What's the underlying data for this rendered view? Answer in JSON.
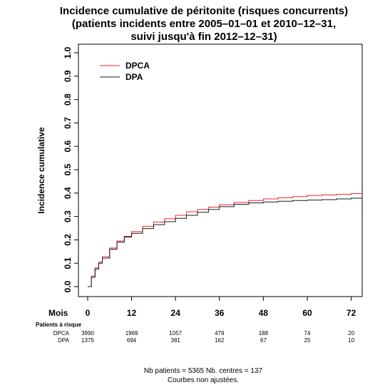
{
  "chart_data": {
    "type": "line",
    "title": [
      "Incidence cumulative de péritonite (risques concurrents)",
      "(patients incidents entre 2005–01–01 et 2010–12–31,",
      "suivi jusqu'à fin 2012–12–31)"
    ],
    "ylabel": "Incidence cumulative",
    "xlabel": "Mois",
    "xlim": [
      0,
      75
    ],
    "ylim": [
      0,
      1.0
    ],
    "x_ticks": [
      0,
      12,
      24,
      36,
      48,
      60,
      72
    ],
    "y_ticks": [
      0.0,
      0.1,
      0.2,
      0.3,
      0.4,
      0.5,
      0.6,
      0.7,
      0.8,
      0.9,
      1.0
    ],
    "grid": false,
    "legend_position": "top-left",
    "series": [
      {
        "name": "DPCA",
        "color": "#e8262c",
        "x": [
          0,
          1,
          2,
          3,
          4,
          6,
          8,
          10,
          12,
          15,
          18,
          21,
          24,
          27,
          30,
          33,
          36,
          40,
          44,
          48,
          52,
          56,
          60,
          64,
          68,
          72,
          75
        ],
        "y": [
          0.0,
          0.045,
          0.08,
          0.105,
          0.128,
          0.165,
          0.195,
          0.215,
          0.235,
          0.258,
          0.276,
          0.29,
          0.305,
          0.32,
          0.33,
          0.34,
          0.35,
          0.36,
          0.368,
          0.375,
          0.38,
          0.385,
          0.39,
          0.392,
          0.395,
          0.398,
          0.4
        ]
      },
      {
        "name": "DPA",
        "color": "#1a1a1a",
        "x": [
          0,
          1,
          2,
          3,
          4,
          6,
          8,
          10,
          12,
          15,
          18,
          21,
          24,
          27,
          30,
          33,
          36,
          40,
          44,
          48,
          52,
          56,
          60,
          64,
          68,
          72,
          75
        ],
        "y": [
          0.0,
          0.04,
          0.075,
          0.1,
          0.122,
          0.16,
          0.19,
          0.212,
          0.228,
          0.248,
          0.265,
          0.278,
          0.292,
          0.305,
          0.318,
          0.33,
          0.342,
          0.352,
          0.358,
          0.362,
          0.365,
          0.368,
          0.37,
          0.372,
          0.375,
          0.378,
          0.38
        ]
      }
    ],
    "risk_table": {
      "header": "Patients à risque",
      "rows": [
        {
          "label": "DPCA",
          "values": [
            "3990",
            "1969",
            "1057",
            "479",
            "188",
            "74",
            "20"
          ]
        },
        {
          "label": "DPA",
          "values": [
            "1375",
            "694",
            "381",
            "162",
            "67",
            "25",
            "10"
          ]
        }
      ]
    },
    "footer": [
      "Nb patients = 5365    Nb. centres = 137",
      "Courbes non ajustées."
    ]
  }
}
